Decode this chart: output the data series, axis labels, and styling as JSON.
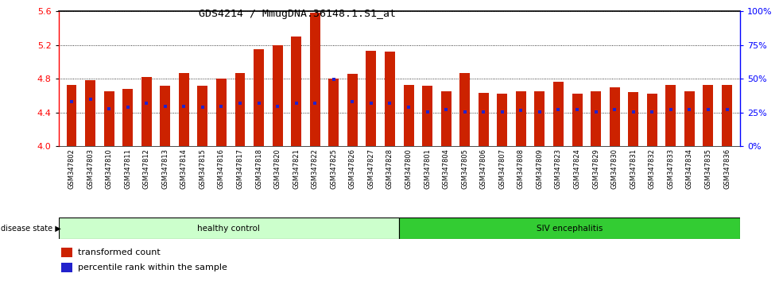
{
  "title": "GDS4214 / MmugDNA.36148.1.S1_at",
  "samples": [
    "GSM347802",
    "GSM347803",
    "GSM347810",
    "GSM347811",
    "GSM347812",
    "GSM347813",
    "GSM347814",
    "GSM347815",
    "GSM347816",
    "GSM347817",
    "GSM347818",
    "GSM347820",
    "GSM347821",
    "GSM347822",
    "GSM347825",
    "GSM347826",
    "GSM347827",
    "GSM347828",
    "GSM347800",
    "GSM347801",
    "GSM347804",
    "GSM347805",
    "GSM347806",
    "GSM347807",
    "GSM347808",
    "GSM347809",
    "GSM347823",
    "GSM347824",
    "GSM347829",
    "GSM347830",
    "GSM347831",
    "GSM347832",
    "GSM347833",
    "GSM347834",
    "GSM347835",
    "GSM347836"
  ],
  "bar_values": [
    4.73,
    4.78,
    4.65,
    4.68,
    4.82,
    4.72,
    4.87,
    4.72,
    4.8,
    4.87,
    5.15,
    5.2,
    5.3,
    5.58,
    4.8,
    4.86,
    5.13,
    5.12,
    4.73,
    4.72,
    4.65,
    4.87,
    4.63,
    4.62,
    4.65,
    4.65,
    4.76,
    4.62,
    4.65,
    4.7,
    4.64,
    4.62,
    4.73,
    4.65,
    4.73,
    4.73
  ],
  "blue_marker_values": [
    4.53,
    4.56,
    4.44,
    4.46,
    4.51,
    4.47,
    4.47,
    4.46,
    4.47,
    4.51,
    4.51,
    4.47,
    4.51,
    4.51,
    4.79,
    4.53,
    4.51,
    4.51,
    4.46,
    4.41,
    4.43,
    4.41,
    4.41,
    4.41,
    4.42,
    4.41,
    4.43,
    4.43,
    4.41,
    4.43,
    4.41,
    4.41,
    4.43,
    4.43,
    4.43,
    4.43
  ],
  "healthy_control_count": 18,
  "ylim_min": 4.0,
  "ylim_max": 5.6,
  "y_ticks_left": [
    4.0,
    4.4,
    4.8,
    5.2,
    5.6
  ],
  "y_ticks_right_vals": [
    0,
    25,
    50,
    75,
    100
  ],
  "y_ticks_right_labels": [
    "0%",
    "25%",
    "50%",
    "75%",
    "100%"
  ],
  "bar_color": "#cc2200",
  "blue_color": "#2222cc",
  "healthy_bg_light": "#ccffcc",
  "siv_bg_dark": "#33cc33",
  "xlabel_bg": "#cccccc"
}
